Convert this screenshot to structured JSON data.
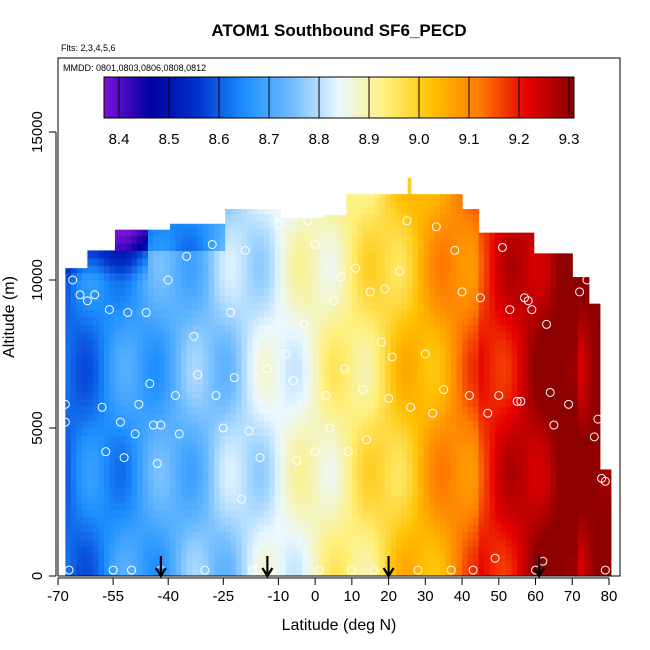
{
  "chart_data": {
    "type": "heatmap",
    "title": "ATOM1 Southbound SF6_PECD",
    "flights_label": "Flts: 2,3,4,5,6",
    "mmdd_label": "MMDD: 0801,0803,0806,0808,0812",
    "xlabel": "Latitude (deg N)",
    "ylabel": "Altitude (m)",
    "xlim": [
      -70,
      83
    ],
    "ylim": [
      0,
      17500
    ],
    "x_ticks": [
      -70,
      -55,
      -40,
      -25,
      -10,
      0,
      10,
      20,
      30,
      40,
      50,
      60,
      70,
      80
    ],
    "x_tick_labels": [
      "-70",
      "-55",
      "-40",
      "-25",
      "-10",
      "0",
      "10",
      "20",
      "30",
      "40",
      "50",
      "60",
      "70",
      "80"
    ],
    "y_ticks": [
      0,
      5000,
      10000,
      15000
    ],
    "y_tick_labels": [
      "0",
      "5000",
      "10000",
      "15000"
    ],
    "colorbar": {
      "min": 8.37,
      "max": 9.31,
      "ticks": [
        8.4,
        8.5,
        8.6,
        8.7,
        8.8,
        8.9,
        9.0,
        9.1,
        9.2,
        9.3
      ],
      "tick_labels": [
        "8.4",
        "8.5",
        "8.6",
        "8.7",
        "8.8",
        "8.9",
        "9.0",
        "9.1",
        "9.2",
        "9.3"
      ],
      "colors": [
        "#7a12d6",
        "#0000a0",
        "#0033cc",
        "#1e90ff",
        "#70bcff",
        "#eaf8ff",
        "#fff07a",
        "#ffc000",
        "#ff7a00",
        "#e60000",
        "#8c0000"
      ]
    },
    "profile_arrows_lat": [
      -42,
      -13,
      20,
      61
    ],
    "sample_points": [
      {
        "lat": -68,
        "alt": 5800
      },
      {
        "lat": -68,
        "alt": 5200
      },
      {
        "lat": -67,
        "alt": 200
      },
      {
        "lat": -66,
        "alt": 10000
      },
      {
        "lat": -64,
        "alt": 9500
      },
      {
        "lat": -62,
        "alt": 9300
      },
      {
        "lat": -60,
        "alt": 9500
      },
      {
        "lat": -58,
        "alt": 5700
      },
      {
        "lat": -57,
        "alt": 4200
      },
      {
        "lat": -56,
        "alt": 9000
      },
      {
        "lat": -55,
        "alt": 200
      },
      {
        "lat": -53,
        "alt": 5200
      },
      {
        "lat": -52,
        "alt": 4000
      },
      {
        "lat": -51,
        "alt": 8900
      },
      {
        "lat": -50,
        "alt": 200
      },
      {
        "lat": -49,
        "alt": 4800
      },
      {
        "lat": -48,
        "alt": 5800
      },
      {
        "lat": -46,
        "alt": 8900
      },
      {
        "lat": -45,
        "alt": 6500
      },
      {
        "lat": -44,
        "alt": 5100
      },
      {
        "lat": -43,
        "alt": 3800
      },
      {
        "lat": -42,
        "alt": 5100
      },
      {
        "lat": -42,
        "alt": 200
      },
      {
        "lat": -40,
        "alt": 10000
      },
      {
        "lat": -38,
        "alt": 6100
      },
      {
        "lat": -37,
        "alt": 4800
      },
      {
        "lat": -35,
        "alt": 10800
      },
      {
        "lat": -33,
        "alt": 8100
      },
      {
        "lat": -32,
        "alt": 6800
      },
      {
        "lat": -30,
        "alt": 200
      },
      {
        "lat": -28,
        "alt": 11200
      },
      {
        "lat": -27,
        "alt": 6100
      },
      {
        "lat": -25,
        "alt": 5000
      },
      {
        "lat": -23,
        "alt": 8900
      },
      {
        "lat": -22,
        "alt": 6700
      },
      {
        "lat": -20,
        "alt": 2600
      },
      {
        "lat": -19,
        "alt": 11000
      },
      {
        "lat": -18,
        "alt": 4900
      },
      {
        "lat": -17,
        "alt": 200
      },
      {
        "lat": -15,
        "alt": 4000
      },
      {
        "lat": -13,
        "alt": 7000
      },
      {
        "lat": -12,
        "alt": 200
      },
      {
        "lat": -10,
        "alt": 11900
      },
      {
        "lat": -8,
        "alt": 7500
      },
      {
        "lat": -6,
        "alt": 6600
      },
      {
        "lat": -5,
        "alt": 3900
      },
      {
        "lat": -3,
        "alt": 8500
      },
      {
        "lat": -2,
        "alt": 12000
      },
      {
        "lat": 0,
        "alt": 11200
      },
      {
        "lat": 0,
        "alt": 4200
      },
      {
        "lat": 1,
        "alt": 200
      },
      {
        "lat": 3,
        "alt": 6100
      },
      {
        "lat": 4,
        "alt": 5000
      },
      {
        "lat": 5,
        "alt": 9300
      },
      {
        "lat": 7,
        "alt": 10100
      },
      {
        "lat": 8,
        "alt": 7000
      },
      {
        "lat": 9,
        "alt": 4200
      },
      {
        "lat": 10,
        "alt": 200
      },
      {
        "lat": 11,
        "alt": 10400
      },
      {
        "lat": 13,
        "alt": 6300
      },
      {
        "lat": 14,
        "alt": 4600
      },
      {
        "lat": 15,
        "alt": 9600
      },
      {
        "lat": 16,
        "alt": 200
      },
      {
        "lat": 18,
        "alt": 7900
      },
      {
        "lat": 19,
        "alt": 9700
      },
      {
        "lat": 20,
        "alt": 6000
      },
      {
        "lat": 21,
        "alt": 7400
      },
      {
        "lat": 23,
        "alt": 10300
      },
      {
        "lat": 25,
        "alt": 12000
      },
      {
        "lat": 26,
        "alt": 5700
      },
      {
        "lat": 28,
        "alt": 200
      },
      {
        "lat": 30,
        "alt": 7500
      },
      {
        "lat": 32,
        "alt": 5500
      },
      {
        "lat": 33,
        "alt": 11800
      },
      {
        "lat": 35,
        "alt": 6300
      },
      {
        "lat": 37,
        "alt": 200
      },
      {
        "lat": 38,
        "alt": 11000
      },
      {
        "lat": 40,
        "alt": 9600
      },
      {
        "lat": 42,
        "alt": 6100
      },
      {
        "lat": 43,
        "alt": 200
      },
      {
        "lat": 45,
        "alt": 9400
      },
      {
        "lat": 47,
        "alt": 5500
      },
      {
        "lat": 49,
        "alt": 600
      },
      {
        "lat": 50,
        "alt": 6100
      },
      {
        "lat": 51,
        "alt": 11100
      },
      {
        "lat": 53,
        "alt": 9000
      },
      {
        "lat": 55,
        "alt": 5900
      },
      {
        "lat": 56,
        "alt": 5900
      },
      {
        "lat": 57,
        "alt": 9400
      },
      {
        "lat": 58,
        "alt": 9300
      },
      {
        "lat": 59,
        "alt": 9000
      },
      {
        "lat": 60,
        "alt": 200
      },
      {
        "lat": 62,
        "alt": 500
      },
      {
        "lat": 63,
        "alt": 8500
      },
      {
        "lat": 64,
        "alt": 6200
      },
      {
        "lat": 65,
        "alt": 5100
      },
      {
        "lat": 66,
        "alt": 11200
      },
      {
        "lat": 69,
        "alt": 5800
      },
      {
        "lat": 72,
        "alt": 9600
      },
      {
        "lat": 74,
        "alt": 10000
      },
      {
        "lat": 76,
        "alt": 4700
      },
      {
        "lat": 77,
        "alt": 5300
      },
      {
        "lat": 78,
        "alt": 3300
      },
      {
        "lat": 79,
        "alt": 3200
      },
      {
        "lat": 79,
        "alt": 200
      }
    ]
  }
}
